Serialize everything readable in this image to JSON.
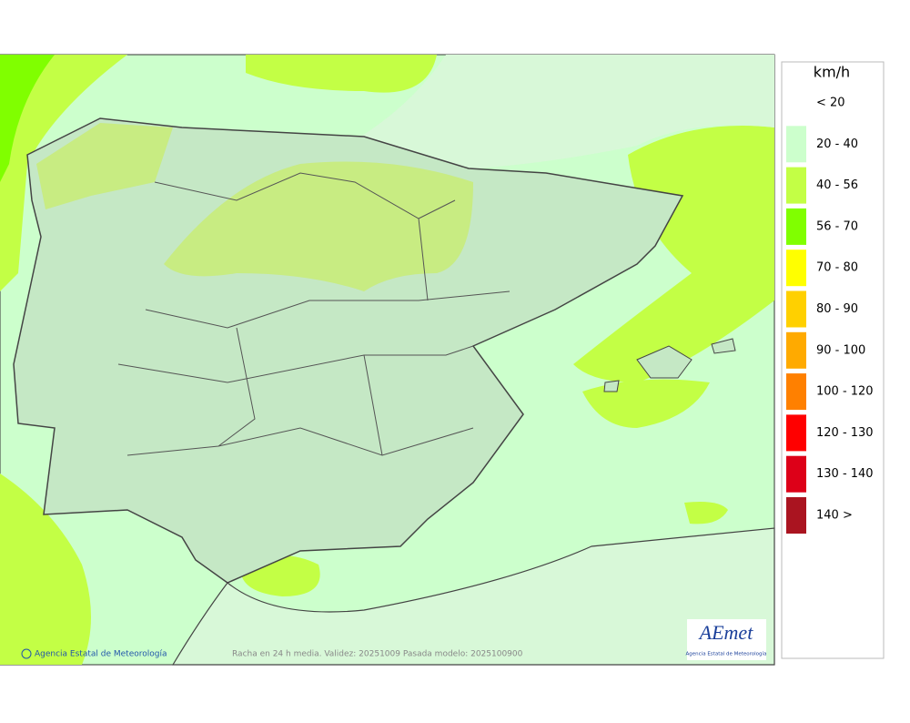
{
  "legend": {
    "title": "km/h",
    "items": [
      {
        "label": "< 20"
      },
      {
        "label": "20 - 40",
        "color": "#ccffcc"
      },
      {
        "label": "40 - 56",
        "color": "#c3ff45"
      },
      {
        "label": "56 - 70",
        "color": "#80ff00"
      },
      {
        "label": "70 - 80",
        "color": "#ffff00"
      },
      {
        "label": "80 - 90",
        "color": "#ffd000"
      },
      {
        "label": "90 - 100",
        "color": "#ffaa00"
      },
      {
        "label": "100 - 120",
        "color": "#ff8000"
      },
      {
        "label": "120 - 130",
        "color": "#ff0000"
      },
      {
        "label": "130 - 140",
        "color": "#dd0018"
      },
      {
        "label": "140 >",
        "color": "#aa1420"
      }
    ]
  },
  "footer": {
    "credit": "Agencia Estatal de Meteorología",
    "caption": "Racha en 24 h media. Validez: 20251009 Pasada modelo: 2025100900"
  },
  "logo": {
    "name": "AEmet",
    "subtitle": "Agencia Estatal de Meteorología"
  }
}
